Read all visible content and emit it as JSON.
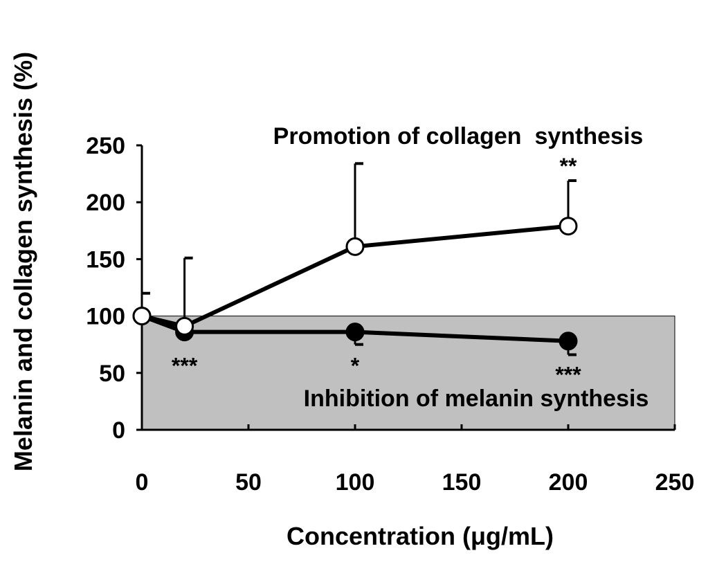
{
  "chart_data": {
    "type": "line",
    "title": "",
    "xlabel": "Concentration (μg/mL)",
    "ylabel": "Melanin and collagen synthesis (%)",
    "xlim": [
      0,
      250
    ],
    "ylim": [
      0,
      250
    ],
    "xticks": [
      "0",
      "50",
      "100",
      "150",
      "200",
      "250"
    ],
    "yticks": [
      "0",
      "50",
      "100",
      "150",
      "200",
      "250"
    ],
    "grid": false,
    "shaded_region": {
      "y_from": 0,
      "y_to": 100,
      "color": "#c0c0c0"
    },
    "series": [
      {
        "name": "Promotion of collagen synthesis",
        "marker": "open-circle",
        "x": [
          0,
          20,
          100,
          200
        ],
        "y": [
          100,
          91,
          161,
          179
        ],
        "error": [
          20,
          60,
          73,
          40
        ],
        "significance": [
          "",
          "",
          "",
          "**"
        ]
      },
      {
        "name": "Inhibition of melanin synthesis",
        "marker": "filled-circle",
        "x": [
          0,
          20,
          100,
          200
        ],
        "y": [
          100,
          86,
          86,
          78
        ],
        "error": [
          0,
          0,
          11,
          12
        ],
        "significance": [
          "",
          "***",
          "*",
          "***"
        ]
      }
    ],
    "annotations": [
      {
        "text": "Promotion of collagen  synthesis",
        "anchor_x": 125,
        "anchor_y": 259
      },
      {
        "text": "Inhibition of melanin synthesis",
        "anchor_x": 127,
        "anchor_y": 27
      }
    ],
    "colors": {
      "shade": "#c0c0c0",
      "line": "#000000",
      "open_marker_fill": "#ffffff"
    }
  }
}
